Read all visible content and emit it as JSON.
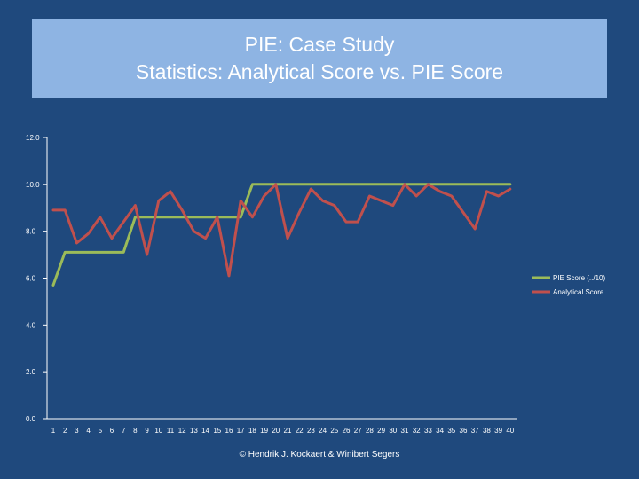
{
  "slide": {
    "title_line1": "PIE: Case Study",
    "title_line2": "Statistics: Analytical Score vs. PIE Score",
    "footer": "© Hendrik J. Kockaert & Winibert Segers"
  },
  "colors": {
    "background": "#1f497d",
    "title_box": "#8eb4e3",
    "pie_series": "#9bbb59",
    "analytical_series": "#c0504d",
    "axis": "#ffffff"
  },
  "chart_data": {
    "type": "line",
    "title": "",
    "xlabel": "",
    "ylabel": "",
    "categories": [
      "1",
      "2",
      "3",
      "4",
      "5",
      "6",
      "7",
      "8",
      "9",
      "10",
      "11",
      "12",
      "13",
      "14",
      "15",
      "16",
      "17",
      "18",
      "19",
      "20",
      "21",
      "22",
      "23",
      "24",
      "25",
      "26",
      "27",
      "28",
      "29",
      "30",
      "31",
      "32",
      "33",
      "34",
      "35",
      "36",
      "37",
      "38",
      "39",
      "40"
    ],
    "y_ticks": [
      "0.0",
      "2.0",
      "4.0",
      "6.0",
      "8.0",
      "10.0",
      "12.0"
    ],
    "ylim": [
      0,
      12
    ],
    "grid": false,
    "legend_position": "right",
    "series": [
      {
        "name": "PIE Score (../10)",
        "color": "#9bbb59",
        "values": [
          5.7,
          7.1,
          7.1,
          7.1,
          7.1,
          7.1,
          7.1,
          8.6,
          8.6,
          8.6,
          8.6,
          8.6,
          8.6,
          8.6,
          8.6,
          8.6,
          8.6,
          10.0,
          10.0,
          10.0,
          10.0,
          10.0,
          10.0,
          10.0,
          10.0,
          10.0,
          10.0,
          10.0,
          10.0,
          10.0,
          10.0,
          10.0,
          10.0,
          10.0,
          10.0,
          10.0,
          10.0,
          10.0,
          10.0,
          10.0
        ]
      },
      {
        "name": "Analytical Score",
        "color": "#c0504d",
        "values": [
          8.9,
          8.9,
          7.5,
          7.9,
          8.6,
          7.7,
          8.4,
          9.1,
          7.0,
          9.3,
          9.7,
          8.9,
          8.0,
          7.7,
          8.6,
          6.1,
          9.3,
          8.6,
          9.5,
          10.0,
          7.7,
          8.8,
          9.8,
          9.3,
          9.1,
          8.4,
          8.4,
          9.5,
          9.3,
          9.1,
          10.0,
          9.5,
          10.0,
          9.7,
          9.5,
          8.8,
          8.1,
          9.7,
          9.5,
          9.8
        ]
      }
    ]
  }
}
